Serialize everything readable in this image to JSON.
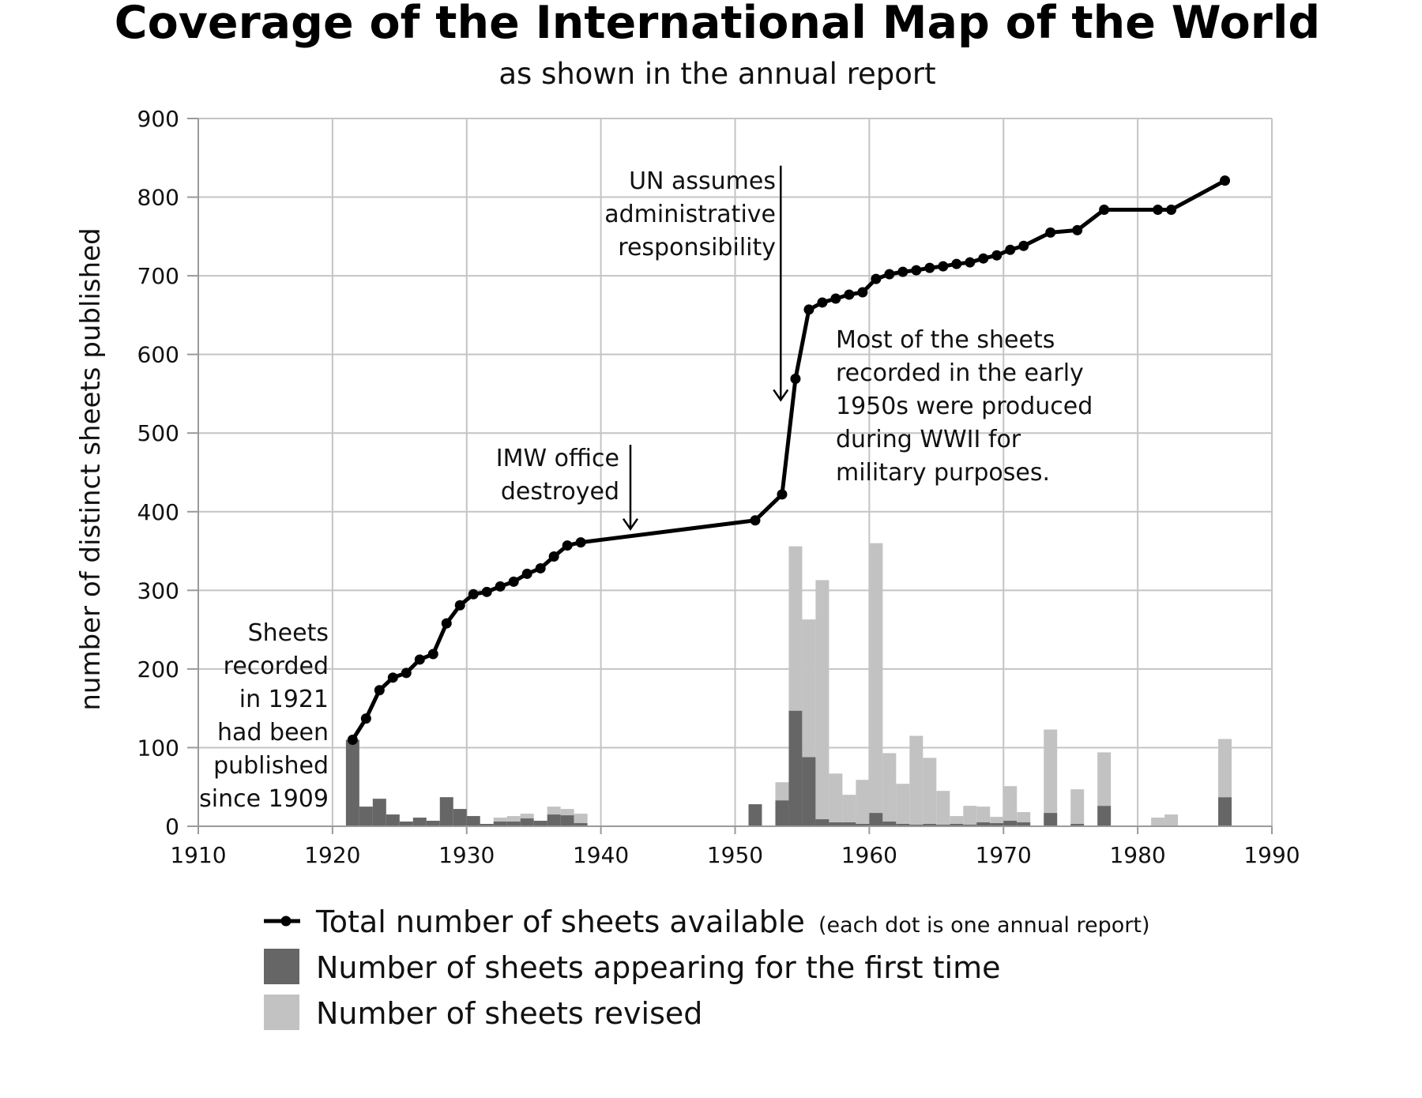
{
  "chart_data": {
    "type": "bar+line",
    "title": "Coverage of the International Map of the World",
    "subtitle": "as shown in the annual report",
    "ylabel": "number of distinct sheets published",
    "xlabel": "",
    "xlim": [
      1910,
      1990
    ],
    "ylim": [
      0,
      900
    ],
    "grid": true,
    "x_ticks": [
      "1910",
      "1920",
      "1930",
      "1940",
      "1950",
      "1960",
      "1970",
      "1980",
      "1990"
    ],
    "x_tick_values": [
      1910,
      1920,
      1930,
      1940,
      1950,
      1960,
      1970,
      1980,
      1990
    ],
    "y_ticks": [
      "0",
      "100",
      "200",
      "300",
      "400",
      "500",
      "600",
      "700",
      "800",
      "900"
    ],
    "y_tick_values": [
      0,
      100,
      200,
      300,
      400,
      500,
      600,
      700,
      800,
      900
    ],
    "line_series": {
      "name": "Total number of sheets available",
      "note": "(each dot is one annual report)",
      "color": "#000000",
      "points": [
        [
          1921.5,
          110
        ],
        [
          1922.5,
          137
        ],
        [
          1923.5,
          173
        ],
        [
          1924.5,
          189
        ],
        [
          1925.5,
          195
        ],
        [
          1926.5,
          212
        ],
        [
          1927.5,
          219
        ],
        [
          1928.5,
          258
        ],
        [
          1929.5,
          281
        ],
        [
          1930.5,
          295
        ],
        [
          1931.5,
          298
        ],
        [
          1932.5,
          305
        ],
        [
          1933.5,
          311
        ],
        [
          1934.5,
          321
        ],
        [
          1935.5,
          328
        ],
        [
          1936.5,
          343
        ],
        [
          1937.5,
          357
        ],
        [
          1938.5,
          361
        ],
        [
          1951.5,
          389
        ],
        [
          1953.5,
          422
        ],
        [
          1954.5,
          569
        ],
        [
          1955.5,
          657
        ],
        [
          1956.5,
          666
        ],
        [
          1957.5,
          671
        ],
        [
          1958.5,
          676
        ],
        [
          1959.5,
          679
        ],
        [
          1960.5,
          696
        ],
        [
          1961.5,
          702
        ],
        [
          1962.5,
          705
        ],
        [
          1963.5,
          707
        ],
        [
          1964.5,
          710
        ],
        [
          1965.5,
          712
        ],
        [
          1966.5,
          715
        ],
        [
          1967.5,
          717
        ],
        [
          1968.5,
          722
        ],
        [
          1969.5,
          726
        ],
        [
          1970.5,
          733
        ],
        [
          1971.5,
          738
        ],
        [
          1973.5,
          755
        ],
        [
          1975.5,
          758
        ],
        [
          1977.5,
          784
        ],
        [
          1981.5,
          784
        ],
        [
          1982.5,
          784
        ],
        [
          1986.5,
          821
        ]
      ]
    },
    "bar_series": [
      {
        "name": "Number of sheets appearing for the first time",
        "color": "#666666",
        "data": [
          [
            1921.5,
            110
          ],
          [
            1922.5,
            25
          ],
          [
            1923.5,
            35
          ],
          [
            1924.5,
            15
          ],
          [
            1925.5,
            6
          ],
          [
            1926.5,
            11
          ],
          [
            1927.5,
            7
          ],
          [
            1928.5,
            37
          ],
          [
            1929.5,
            22
          ],
          [
            1930.5,
            13
          ],
          [
            1931.5,
            3
          ],
          [
            1932.5,
            6
          ],
          [
            1933.5,
            6
          ],
          [
            1934.5,
            10
          ],
          [
            1935.5,
            7
          ],
          [
            1936.5,
            15
          ],
          [
            1937.5,
            14
          ],
          [
            1938.5,
            4
          ],
          [
            1951.5,
            28
          ],
          [
            1953.5,
            33
          ],
          [
            1954.5,
            147
          ],
          [
            1955.5,
            88
          ],
          [
            1956.5,
            9
          ],
          [
            1957.5,
            5
          ],
          [
            1958.5,
            5
          ],
          [
            1959.5,
            3
          ],
          [
            1960.5,
            17
          ],
          [
            1961.5,
            6
          ],
          [
            1962.5,
            3
          ],
          [
            1963.5,
            2
          ],
          [
            1964.5,
            3
          ],
          [
            1965.5,
            2
          ],
          [
            1966.5,
            3
          ],
          [
            1967.5,
            2
          ],
          [
            1968.5,
            5
          ],
          [
            1969.5,
            4
          ],
          [
            1970.5,
            7
          ],
          [
            1971.5,
            5
          ],
          [
            1973.5,
            17
          ],
          [
            1975.5,
            3
          ],
          [
            1977.5,
            26
          ],
          [
            1981.5,
            0
          ],
          [
            1982.5,
            0
          ],
          [
            1986.5,
            37
          ]
        ]
      },
      {
        "name": "Number of sheets revised",
        "color": "#c2c2c2",
        "data": [
          [
            1921.5,
            0
          ],
          [
            1922.5,
            0
          ],
          [
            1923.5,
            0
          ],
          [
            1924.5,
            0
          ],
          [
            1925.5,
            0
          ],
          [
            1926.5,
            0
          ],
          [
            1927.5,
            0
          ],
          [
            1928.5,
            0
          ],
          [
            1929.5,
            0
          ],
          [
            1930.5,
            0
          ],
          [
            1931.5,
            0
          ],
          [
            1932.5,
            5
          ],
          [
            1933.5,
            7
          ],
          [
            1934.5,
            6
          ],
          [
            1935.5,
            0
          ],
          [
            1936.5,
            10
          ],
          [
            1937.5,
            8
          ],
          [
            1938.5,
            12
          ],
          [
            1951.5,
            0
          ],
          [
            1953.5,
            23
          ],
          [
            1954.5,
            209
          ],
          [
            1955.5,
            175
          ],
          [
            1956.5,
            304
          ],
          [
            1957.5,
            62
          ],
          [
            1958.5,
            35
          ],
          [
            1959.5,
            56
          ],
          [
            1960.5,
            343
          ],
          [
            1961.5,
            87
          ],
          [
            1962.5,
            51
          ],
          [
            1963.5,
            113
          ],
          [
            1964.5,
            84
          ],
          [
            1965.5,
            43
          ],
          [
            1966.5,
            10
          ],
          [
            1967.5,
            24
          ],
          [
            1968.5,
            20
          ],
          [
            1969.5,
            8
          ],
          [
            1970.5,
            44
          ],
          [
            1971.5,
            13
          ],
          [
            1973.5,
            106
          ],
          [
            1975.5,
            44
          ],
          [
            1977.5,
            68
          ],
          [
            1981.5,
            11
          ],
          [
            1982.5,
            15
          ],
          [
            1986.5,
            74
          ]
        ]
      }
    ],
    "annotations": [
      {
        "id": "sheets-1921",
        "lines": [
          "Sheets",
          "recorded",
          "in 1921",
          "had been",
          "published",
          "since 1909"
        ]
      },
      {
        "id": "imw-office",
        "lines": [
          "IMW office",
          "destroyed"
        ],
        "arrow_from": [
          1942.2,
          485
        ],
        "arrow_to": [
          1942.2,
          378
        ]
      },
      {
        "id": "un-assumes",
        "lines": [
          "UN assumes",
          "administrative",
          "responsibility"
        ],
        "arrow_from": [
          1953.4,
          840
        ],
        "arrow_to": [
          1953.4,
          542
        ]
      },
      {
        "id": "most-sheets",
        "lines": [
          "Most of the sheets",
          "recorded in the early",
          "1950s were produced",
          "during WWII for",
          "military purposes."
        ]
      }
    ],
    "legend": {
      "position": "bottom",
      "items": [
        {
          "label": "Total number of sheets available",
          "note": "(each dot is one annual report)",
          "kind": "line"
        },
        {
          "label": "Number of sheets appearing for the first time",
          "kind": "bar-dark"
        },
        {
          "label": "Number of sheets revised",
          "kind": "bar-light"
        }
      ]
    }
  }
}
